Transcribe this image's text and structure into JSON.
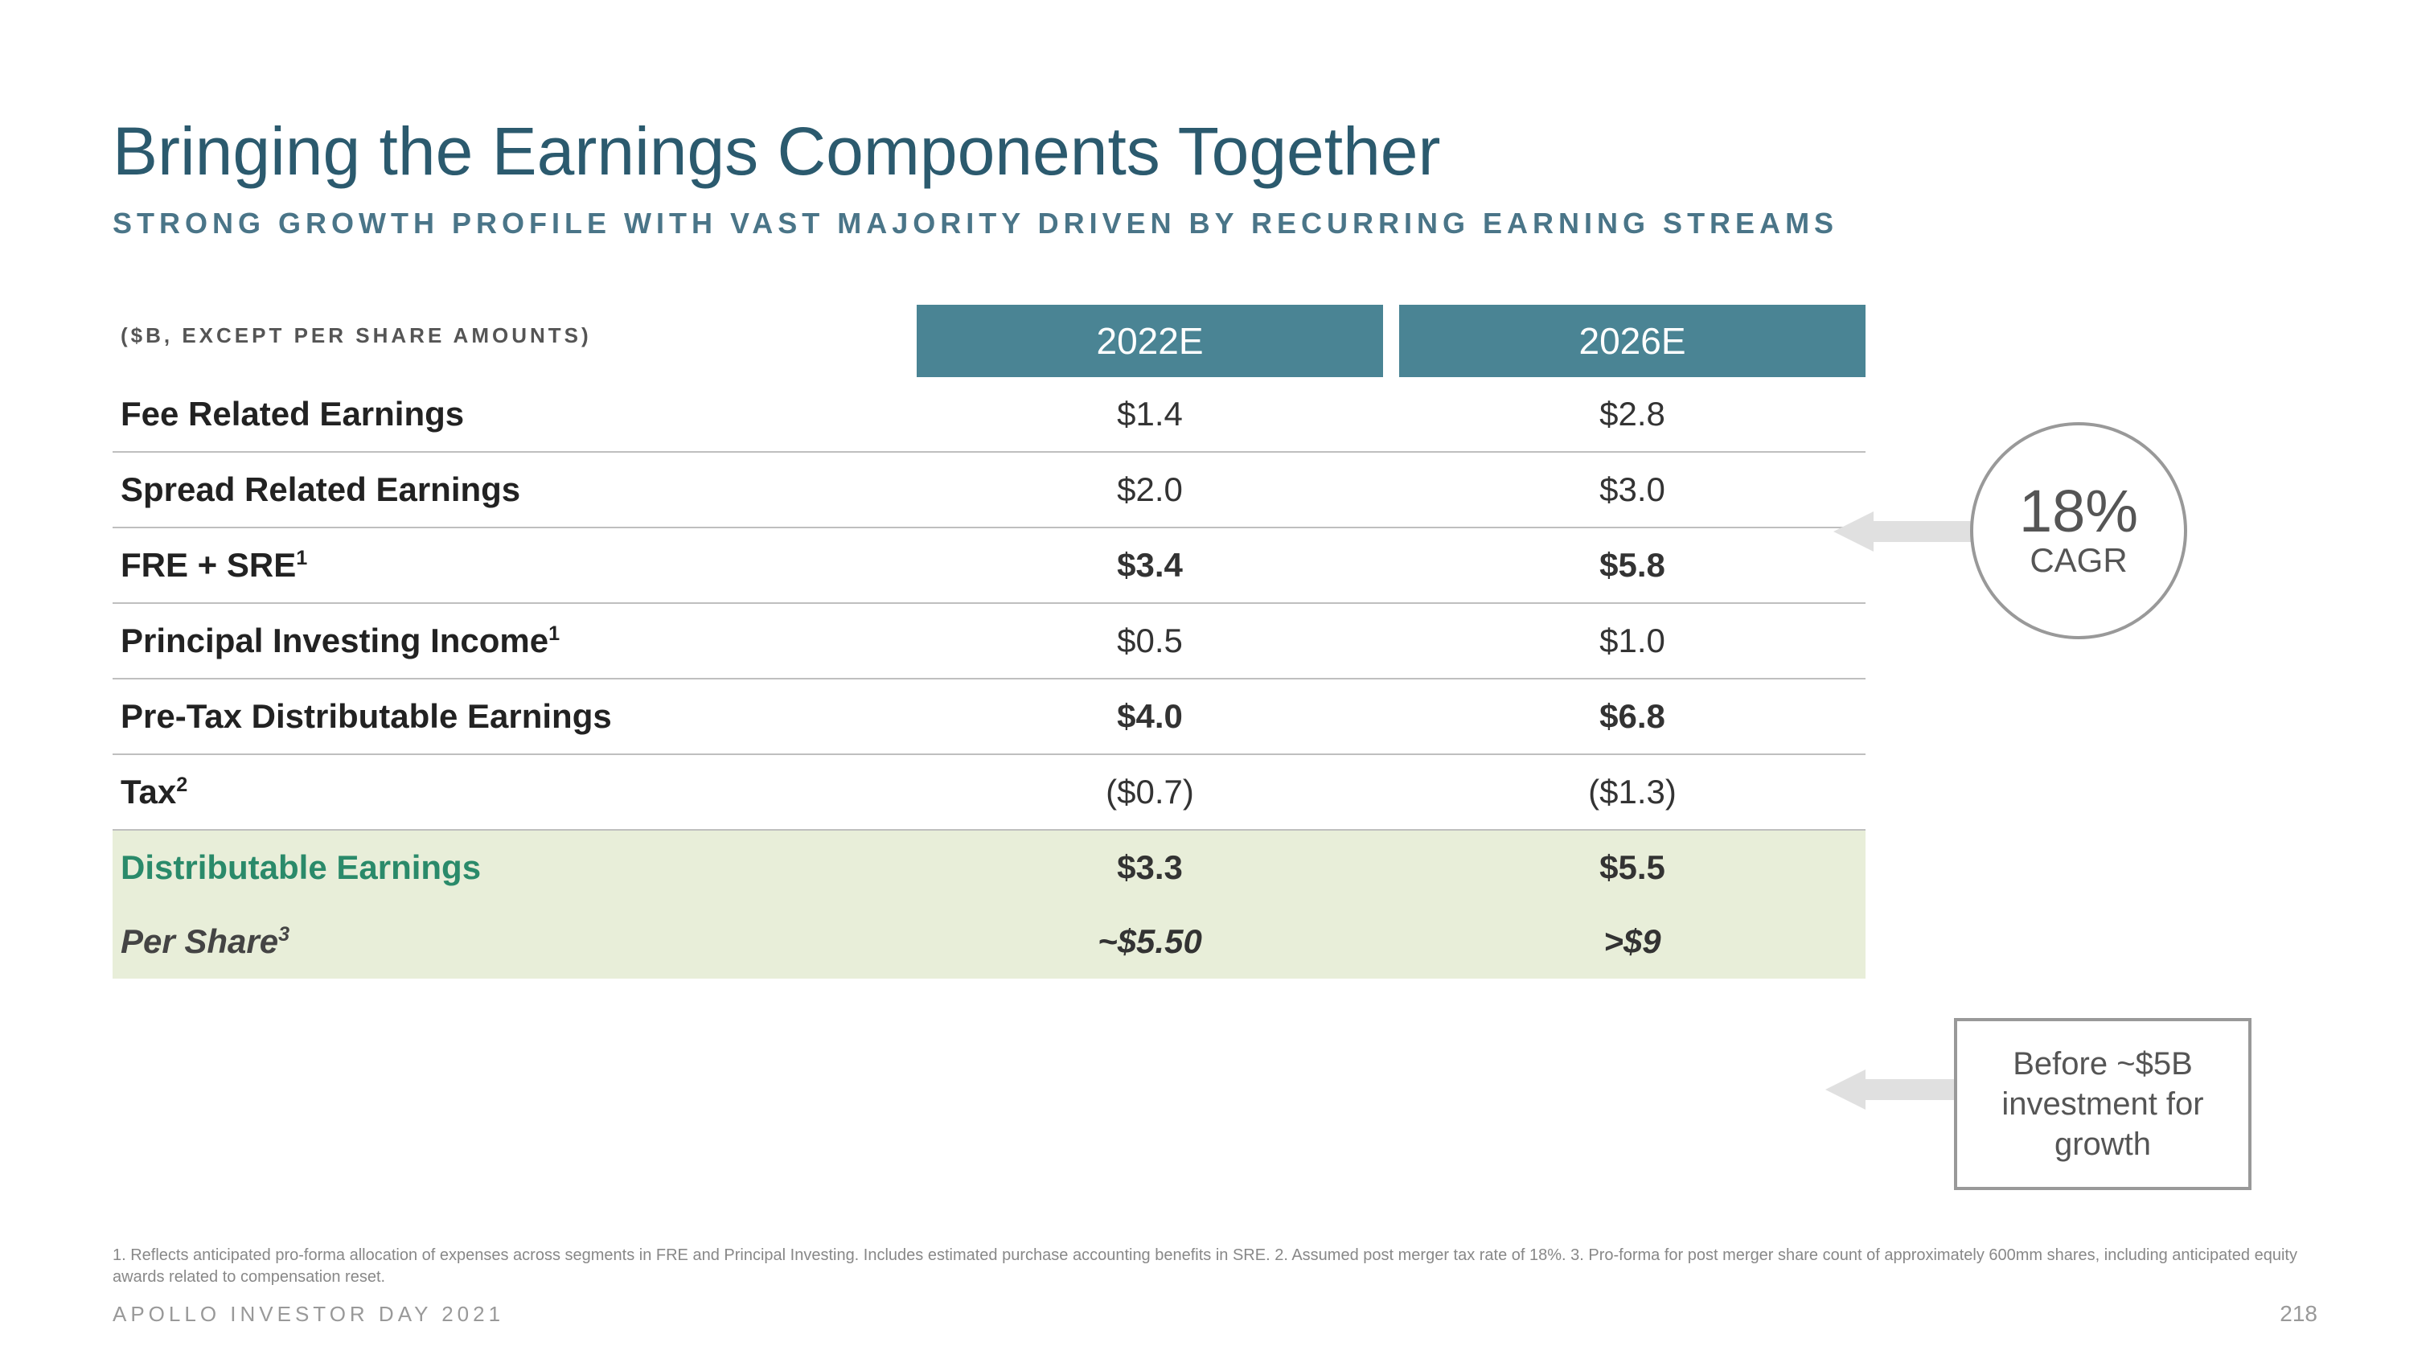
{
  "title": "Bringing the Earnings Components Together",
  "subtitle": "STRONG GROWTH PROFILE WITH VAST MAJORITY DRIVEN BY RECURRING EARNING STREAMS",
  "table_note": "($B, EXCEPT PER SHARE AMOUNTS)",
  "years": {
    "y1": "2022E",
    "y2": "2026E"
  },
  "rows": {
    "fee_related": {
      "label": "Fee Related Earnings",
      "y1": "$1.4",
      "y2": "$2.8",
      "bold": false
    },
    "spread_related": {
      "label": "Spread Related Earnings",
      "y1": "$2.0",
      "y2": "$3.0",
      "bold": false
    },
    "fre_sre": {
      "label_html": "FRE + SRE<sup>1</sup>",
      "y1": "$3.4",
      "y2": "$5.8",
      "bold": true
    },
    "pii": {
      "label_html": "Principal Investing Income<sup>1</sup>",
      "y1": "$0.5",
      "y2": "$1.0",
      "bold": false
    },
    "pretax": {
      "label": "Pre-Tax Distributable Earnings",
      "y1": "$4.0",
      "y2": "$6.8",
      "bold": true
    },
    "tax": {
      "label_html": "Tax<sup>2</sup>",
      "y1": "($0.7)",
      "y2": "($1.3)",
      "bold": false
    },
    "de": {
      "label": "Distributable Earnings",
      "y1": "$3.3",
      "y2": "$5.5",
      "bold": true
    },
    "per_share": {
      "label_html": "Per Share<sup>3</sup>",
      "y1": "~$5.50",
      "y2": ">$9",
      "bold": false
    }
  },
  "cagr": {
    "pct": "18%",
    "label": "CAGR"
  },
  "before_box": "Before ~$5B investment for growth",
  "footnote": "1. Reflects anticipated pro-forma allocation of expenses across segments in FRE and Principal Investing. Includes estimated purchase accounting benefits in SRE.  2. Assumed post merger tax rate of 18%.  3. Pro-forma for post merger share count of approximately 600mm shares, including anticipated equity awards related to compensation reset.",
  "footer_left": "APOLLO INVESTOR DAY 2021",
  "page_number": "218",
  "colors": {
    "title": "#2b5a6e",
    "subtitle": "#4a7588",
    "header_bg": "#4a8494",
    "highlight_bg": "#e8eed9",
    "highlight_label": "#2a8a6a",
    "border": "#bfbfbf",
    "annotation_gray": "#999999",
    "arrow_fill": "#e0e0e0"
  }
}
